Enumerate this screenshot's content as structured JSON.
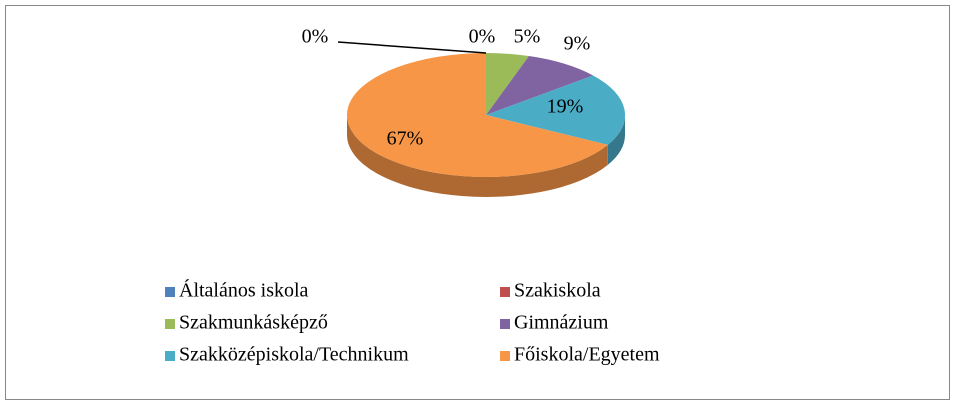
{
  "chart_data": {
    "type": "pie",
    "categories": [
      "Általános iskola",
      "Szakiskola",
      "Szakmunkásképző",
      "Gimnázium",
      "Szakközépiskola/Technikum",
      "Főiskola/Egyetem"
    ],
    "values": [
      0,
      0,
      5,
      9,
      19,
      67
    ],
    "value_labels": [
      "0%",
      "0%",
      "5%",
      "9%",
      "19%",
      "67%"
    ],
    "colors": [
      "#4f81bd",
      "#c0504d",
      "#9bbb59",
      "#8064a2",
      "#4bacc6",
      "#f79646"
    ],
    "legend": "bottom"
  }
}
